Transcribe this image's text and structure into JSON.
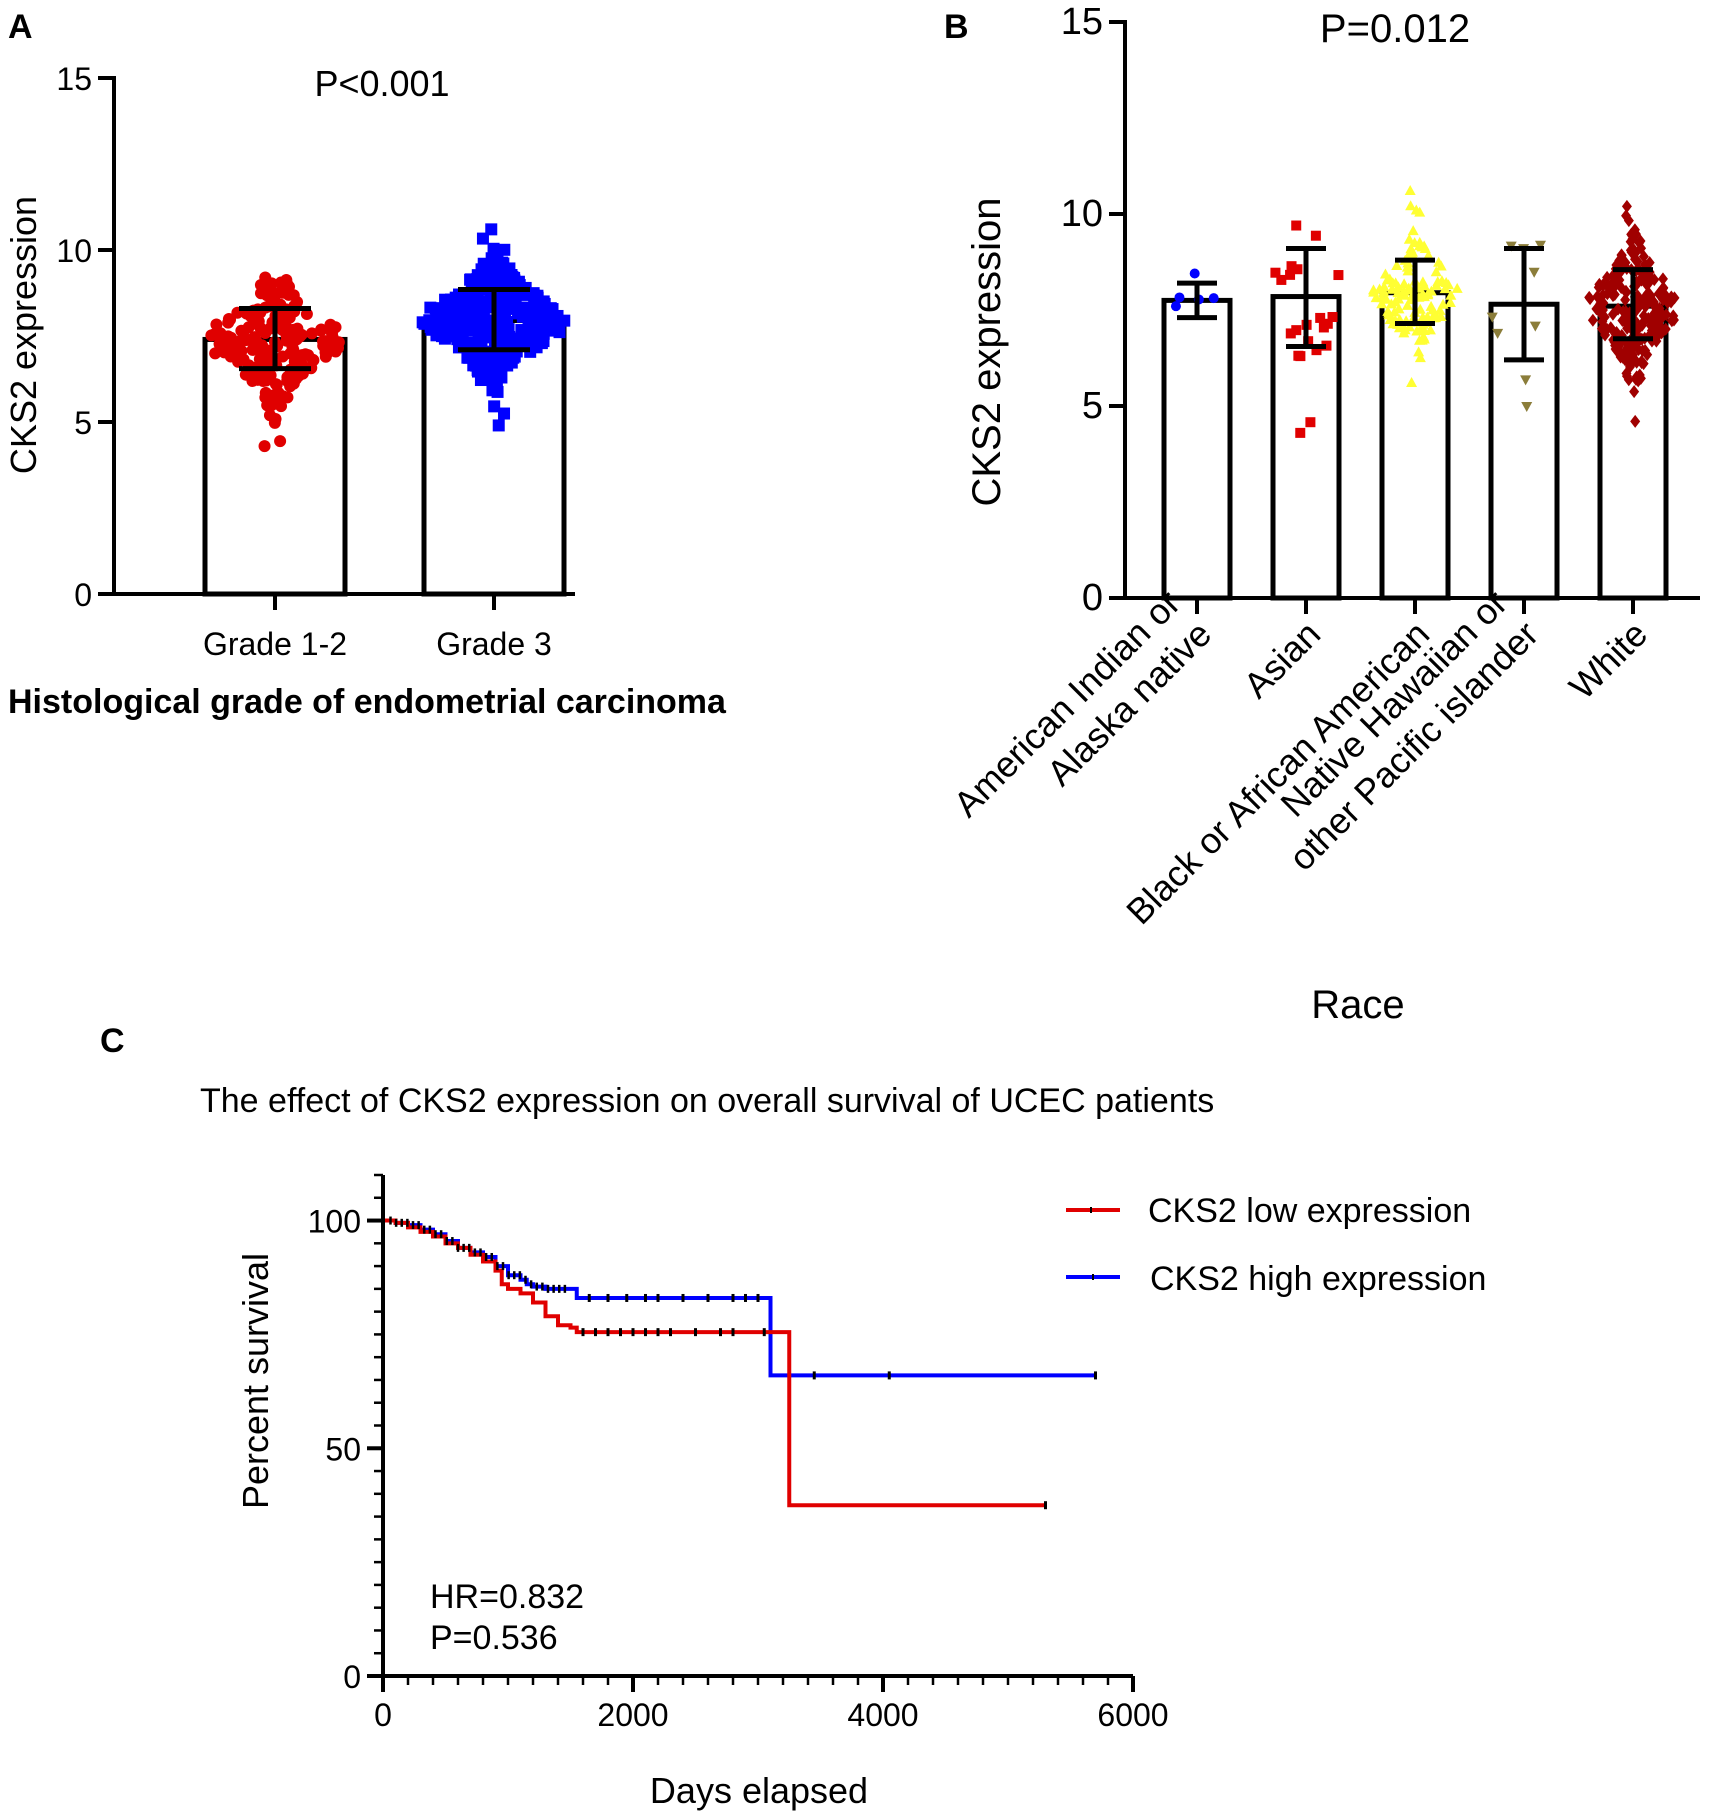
{
  "chart_data": [
    {
      "panel": "A",
      "type": "bar",
      "title": "",
      "annotation": "P<0.001",
      "xlabel": "Histological grade of endometrial carcinoma",
      "ylabel": "CKS2 expression",
      "ylim": [
        0,
        15
      ],
      "yticks": [
        0,
        5,
        10,
        15
      ],
      "categories": [
        "Grade 1-2",
        "Grade 3"
      ],
      "values": [
        7.4,
        7.95
      ],
      "error_low": [
        6.55,
        7.1
      ],
      "error_high": [
        8.3,
        8.85
      ],
      "point_range": [
        [
          4.3,
          9.2
        ],
        [
          4.9,
          10.6
        ]
      ],
      "point_colors": [
        "#e00000",
        "#0000ff"
      ],
      "point_shapes": [
        "circle",
        "square"
      ],
      "grid": false
    },
    {
      "panel": "B",
      "type": "bar",
      "title": "",
      "annotation": "P=0.012",
      "xlabel": "Race",
      "ylabel": "CKS2 expression",
      "ylim": [
        0,
        15
      ],
      "yticks": [
        0,
        5,
        10,
        15
      ],
      "categories": [
        "American Indian or\nAlaska native",
        "Asian",
        "Black or African American",
        "Native Hawaiian or\nother Pacific islander",
        "White"
      ],
      "values": [
        7.75,
        7.85,
        7.95,
        7.65,
        7.6
      ],
      "error_low": [
        7.3,
        6.55,
        7.15,
        6.2,
        6.75
      ],
      "error_high": [
        8.2,
        9.1,
        8.8,
        9.1,
        8.55
      ],
      "point_range": [
        [
          7.6,
          8.45
        ],
        [
          4.3,
          9.7
        ],
        [
          5.6,
          10.6
        ],
        [
          5.0,
          9.2
        ],
        [
          4.6,
          10.2
        ]
      ],
      "point_colors": [
        "#0000ff",
        "#e00000",
        "#ffff33",
        "#8b7d3a",
        "#a00000"
      ],
      "point_shapes": [
        "circle",
        "square",
        "triangle-up",
        "triangle-down",
        "diamond"
      ],
      "grid": false
    },
    {
      "panel": "C",
      "type": "line",
      "title": "The effect of CKS2 expression on overall survival of UCEC patients",
      "xlabel": "Days elapsed",
      "ylabel": "Percent survival",
      "xlim": [
        0,
        6000
      ],
      "ylim": [
        0,
        110
      ],
      "xticks": [
        0,
        2000,
        4000,
        6000
      ],
      "yticks": [
        0,
        50,
        100
      ],
      "annotations": [
        "HR=0.832",
        "P=0.536"
      ],
      "legend_position": "top-right",
      "grid": false,
      "series": [
        {
          "name": "CKS2 low expression",
          "color": "#e00000",
          "x": [
            0,
            100,
            200,
            300,
            400,
            500,
            600,
            700,
            800,
            900,
            950,
            1000,
            1100,
            1200,
            1300,
            1400,
            1500,
            1550,
            3250,
            3250,
            5300
          ],
          "y": [
            100,
            99.5,
            98.5,
            97.5,
            96.5,
            95,
            94,
            92.5,
            91,
            89,
            86,
            85,
            84,
            82,
            79,
            77,
            76.5,
            75.5,
            75.5,
            37.5,
            37.5
          ],
          "censor_x": [
            1600,
            1700,
            1800,
            1900,
            2000,
            2100,
            2200,
            2300,
            2500,
            2700,
            2800,
            3050,
            5300
          ],
          "censor_y": [
            75.5,
            75.5,
            75.5,
            75.5,
            75.5,
            75.5,
            75.5,
            75.5,
            75.5,
            75.5,
            75.5,
            75.5,
            37.5
          ]
        },
        {
          "name": "CKS2 high expression",
          "color": "#0000ff",
          "x": [
            0,
            100,
            200,
            300,
            400,
            500,
            600,
            700,
            800,
            900,
            1000,
            1100,
            1150,
            1200,
            1300,
            1500,
            1550,
            3100,
            3100,
            5700
          ],
          "y": [
            100,
            99.5,
            99,
            98,
            97,
            95.5,
            94,
            93,
            92,
            90,
            88,
            87,
            86,
            85.5,
            85,
            85,
            83,
            83,
            66,
            66
          ],
          "censor_x": [
            1650,
            1800,
            1950,
            2100,
            2200,
            2400,
            2600,
            2800,
            2900,
            3000,
            3450,
            4050,
            5700
          ],
          "censor_y": [
            83,
            83,
            83,
            83,
            83,
            83,
            83,
            83,
            83,
            83,
            66,
            66,
            66
          ]
        }
      ]
    }
  ]
}
